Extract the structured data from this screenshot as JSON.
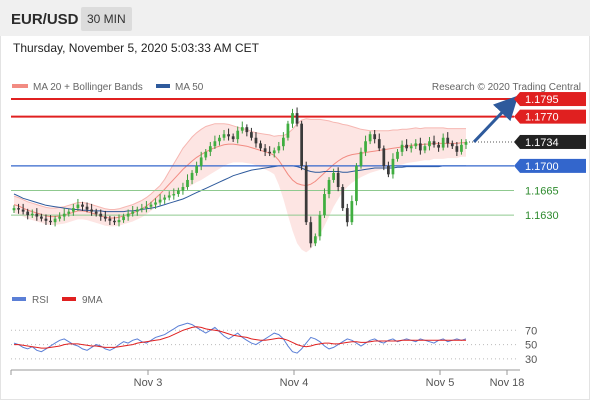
{
  "header": {
    "symbol": "EUR/USD",
    "timeframe": "30 MIN"
  },
  "datetime": "Thursday, November 5, 2020 5:03:33 AM CET",
  "credit": "Research © 2020 Trading Central",
  "legend_main": [
    {
      "label": "MA 20 + Bollinger Bands",
      "color": "#f28b82"
    },
    {
      "label": "MA 50",
      "color": "#2e5a9c"
    }
  ],
  "legend_rsi": [
    {
      "label": "RSI",
      "color": "#5b7fd6"
    },
    {
      "label": "9MA",
      "color": "#e02020"
    }
  ],
  "colors": {
    "resistance": "#e02020",
    "pivot": "#3366cc",
    "support": "#2e8b2e",
    "current": "#222222",
    "arrow": "#2e5a9c"
  },
  "chart_data": [
    {
      "type": "candlestick",
      "ylim": [
        1.1535,
        1.1805
      ],
      "x_ticks": [
        "Nov 3",
        "Nov 4",
        "Nov 5",
        "Nov 18"
      ],
      "current_price": "1.1734",
      "levels": [
        {
          "value": 1.1795,
          "label": "1.1795",
          "kind": "resistance"
        },
        {
          "value": 1.177,
          "label": "1.1770",
          "kind": "resistance"
        },
        {
          "value": 1.1734,
          "label": "1.1734",
          "kind": "current"
        },
        {
          "value": 1.17,
          "label": "1.1700",
          "kind": "pivot"
        },
        {
          "value": 1.1665,
          "label": "1.1665",
          "kind": "support"
        },
        {
          "value": 1.163,
          "label": "1.1630",
          "kind": "support"
        }
      ],
      "close": [
        1.164,
        1.1638,
        1.1635,
        1.163,
        1.1632,
        1.1628,
        1.1625,
        1.1622,
        1.162,
        1.1625,
        1.1628,
        1.1632,
        1.1635,
        1.164,
        1.1645,
        1.1642,
        1.1638,
        1.1635,
        1.1632,
        1.1628,
        1.1625,
        1.1622,
        1.162,
        1.1623,
        1.1628,
        1.1632,
        1.1635,
        1.1638,
        1.164,
        1.1642,
        1.1645,
        1.1648,
        1.1652,
        1.1655,
        1.1658,
        1.166,
        1.1665,
        1.167,
        1.168,
        1.169,
        1.17,
        1.1712,
        1.172,
        1.1728,
        1.1735,
        1.174,
        1.1745,
        1.1742,
        1.1738,
        1.175,
        1.1755,
        1.1748,
        1.174,
        1.1732,
        1.1725,
        1.172,
        1.1718,
        1.1722,
        1.1728,
        1.174,
        1.176,
        1.1775,
        1.176,
        1.17,
        1.162,
        1.159,
        1.16,
        1.163,
        1.166,
        1.168,
        1.169,
        1.167,
        1.164,
        1.162,
        1.165,
        1.17,
        1.172,
        1.1735,
        1.1745,
        1.1738,
        1.1725,
        1.17,
        1.1688,
        1.171,
        1.172,
        1.173,
        1.1725,
        1.1728,
        1.1732,
        1.1722,
        1.1728,
        1.1735,
        1.173,
        1.1726,
        1.174,
        1.1732,
        1.1728,
        1.172,
        1.173,
        1.1734
      ],
      "ma20": [
        1.1645,
        1.1643,
        1.164,
        1.1637,
        1.1635,
        1.1633,
        1.1631,
        1.1629,
        1.1628,
        1.1628,
        1.1629,
        1.163,
        1.1632,
        1.1634,
        1.1636,
        1.1636,
        1.1635,
        1.1633,
        1.1631,
        1.1629,
        1.1627,
        1.1626,
        1.1626,
        1.1627,
        1.1629,
        1.1631,
        1.1633,
        1.1636,
        1.1639,
        1.1643,
        1.1648,
        1.1654,
        1.166,
        1.1667,
        1.1674,
        1.1681,
        1.1688,
        1.1695,
        1.1701,
        1.1707,
        1.1712,
        1.1716,
        1.172,
        1.1723,
        1.1726,
        1.1728,
        1.173,
        1.1731,
        1.1731,
        1.173,
        1.1729,
        1.1728,
        1.1726,
        1.1724,
        1.1722,
        1.172,
        1.1718,
        1.1715,
        1.1708,
        1.1698,
        1.1688,
        1.168,
        1.1675,
        1.1673,
        1.1672,
        1.1674,
        1.1678,
        1.1684,
        1.169,
        1.1696,
        1.1702,
        1.1707,
        1.1711,
        1.1714,
        1.1716,
        1.1717,
        1.1718,
        1.1719,
        1.172,
        1.1721,
        1.1722,
        1.1723,
        1.1724,
        1.1725,
        1.1726,
        1.1727,
        1.1728,
        1.1729,
        1.173,
        1.173,
        1.1731,
        1.1731,
        1.1732,
        1.1732,
        1.1732,
        1.1732,
        1.1732,
        1.1732,
        1.1733,
        1.1733
      ],
      "bb_width": [
        0.0012,
        0.0012,
        0.0012,
        0.0012,
        0.0012,
        0.0012,
        0.0012,
        0.0012,
        0.0012,
        0.0012,
        0.0012,
        0.0012,
        0.0012,
        0.0012,
        0.0012,
        0.0012,
        0.0012,
        0.0012,
        0.0012,
        0.0012,
        0.0012,
        0.0012,
        0.0012,
        0.0012,
        0.0012,
        0.0012,
        0.0012,
        0.0012,
        0.0012,
        0.0012,
        0.0012,
        0.0012,
        0.0012,
        0.0014,
        0.0018,
        0.0022,
        0.0026,
        0.003,
        0.0032,
        0.0034,
        0.0035,
        0.0036,
        0.0036,
        0.0035,
        0.0034,
        0.0032,
        0.003,
        0.0028,
        0.0026,
        0.0025,
        0.0024,
        0.0024,
        0.0023,
        0.0023,
        0.0024,
        0.0025,
        0.0026,
        0.0027,
        0.0035,
        0.0045,
        0.0058,
        0.0072,
        0.0085,
        0.0092,
        0.0095,
        0.0092,
        0.0088,
        0.0082,
        0.0075,
        0.0068,
        0.006,
        0.0054,
        0.0048,
        0.0044,
        0.004,
        0.0037,
        0.0034,
        0.0032,
        0.003,
        0.0029,
        0.0028,
        0.0027,
        0.0026,
        0.0026,
        0.0025,
        0.0025,
        0.0024,
        0.0024,
        0.0024,
        0.0023,
        0.0023,
        0.0023,
        0.0022,
        0.0022,
        0.0022,
        0.0021,
        0.0021,
        0.0021,
        0.002,
        0.002
      ],
      "ma50": [
        1.166,
        1.1657,
        1.1654,
        1.1652,
        1.165,
        1.1648,
        1.1646,
        1.1644,
        1.1643,
        1.1642,
        1.1641,
        1.164,
        1.1639,
        1.1638,
        1.1638,
        1.1637,
        1.1637,
        1.1636,
        1.1636,
        1.1636,
        1.1635,
        1.1635,
        1.1635,
        1.1635,
        1.1635,
        1.1636,
        1.1636,
        1.1637,
        1.1638,
        1.1639,
        1.164,
        1.1641,
        1.1643,
        1.1645,
        1.1647,
        1.1649,
        1.1651,
        1.1653,
        1.1656,
        1.1659,
        1.1662,
        1.1665,
        1.1668,
        1.1671,
        1.1674,
        1.1677,
        1.168,
        1.1683,
        1.1686,
        1.1688,
        1.169,
        1.1692,
        1.1694,
        1.1695,
        1.1696,
        1.1697,
        1.1698,
        1.1699,
        1.17,
        1.17,
        1.17,
        1.17,
        1.1699,
        1.1697,
        1.1694,
        1.1692,
        1.1691,
        1.1691,
        1.1692,
        1.1692,
        1.1692,
        1.1692,
        1.1691,
        1.1691,
        1.1692,
        1.1693,
        1.1694,
        1.1695,
        1.1696,
        1.1697,
        1.1697,
        1.1697,
        1.1697,
        1.1697,
        1.1698,
        1.1698,
        1.1699,
        1.1699,
        1.1699,
        1.1699,
        1.1699,
        1.1699,
        1.1699,
        1.1699,
        1.17,
        1.17,
        1.17,
        1.17,
        1.17,
        1.17
      ],
      "projection": {
        "from": 1.1734,
        "to": 1.1795
      }
    },
    {
      "type": "line",
      "ylim": [
        20,
        90
      ],
      "y_ticks": [
        70,
        50,
        30
      ],
      "series": [
        {
          "name": "RSI",
          "values": [
            52,
            50,
            46,
            44,
            47,
            42,
            40,
            44,
            48,
            52,
            56,
            58,
            54,
            50,
            48,
            44,
            42,
            46,
            50,
            48,
            44,
            42,
            45,
            50,
            54,
            52,
            56,
            58,
            54,
            52,
            56,
            60,
            62,
            64,
            68,
            72,
            76,
            78,
            80,
            78,
            74,
            70,
            66,
            70,
            74,
            68,
            62,
            58,
            62,
            66,
            60,
            56,
            52,
            50,
            54,
            58,
            62,
            66,
            64,
            58,
            48,
            40,
            38,
            44,
            52,
            60,
            58,
            54,
            48,
            44,
            46,
            50,
            54,
            58,
            56,
            52,
            48,
            52,
            56,
            58,
            54,
            52,
            56,
            58,
            54,
            56,
            58,
            56,
            54,
            58,
            56,
            54,
            52,
            56,
            58,
            54,
            56,
            58,
            56,
            58
          ]
        },
        {
          "name": "9MA",
          "values": [
            50,
            50,
            49,
            48,
            47,
            46,
            45,
            45,
            46,
            47,
            48,
            50,
            51,
            51,
            51,
            50,
            49,
            48,
            48,
            47,
            46,
            46,
            46,
            47,
            48,
            49,
            50,
            52,
            53,
            54,
            55,
            56,
            57,
            59,
            61,
            64,
            67,
            70,
            72,
            74,
            75,
            74,
            72,
            71,
            70,
            69,
            67,
            65,
            63,
            62,
            61,
            60,
            58,
            57,
            56,
            56,
            57,
            58,
            59,
            58,
            56,
            53,
            50,
            48,
            47,
            48,
            50,
            51,
            52,
            52,
            51,
            51,
            52,
            53,
            54,
            54,
            53,
            53,
            54,
            55,
            55,
            55,
            55,
            55,
            55,
            56,
            56,
            56,
            56,
            56,
            56,
            56,
            56,
            56,
            56,
            56,
            56,
            56,
            56,
            56
          ]
        }
      ]
    }
  ]
}
